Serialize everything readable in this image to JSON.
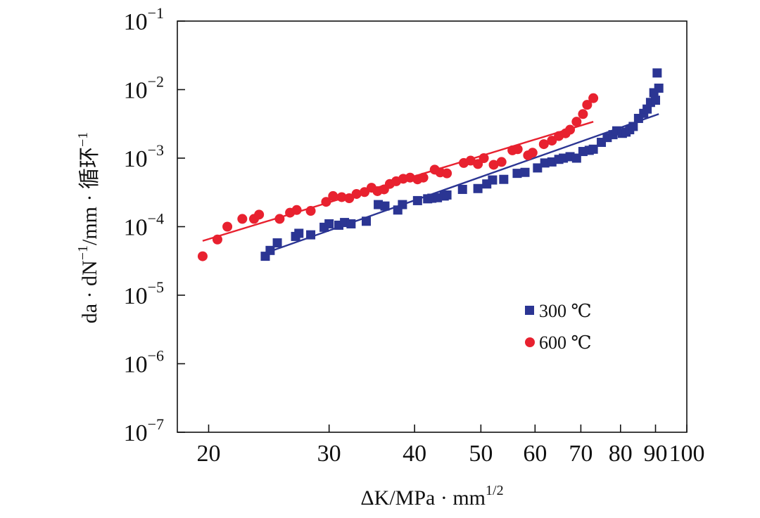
{
  "chart_data": {
    "type": "scatter",
    "x_scale": "log",
    "y_scale": "log",
    "xlabel": {
      "main": "ΔK/MPa · mm",
      "sup": "1/2"
    },
    "ylabel": {
      "a": "da · dN",
      "sup1": "−1",
      "b": "/mm · 循环",
      "sup2": "−1"
    },
    "xlim": [
      18,
      100
    ],
    "ylim": [
      1e-07,
      0.1
    ],
    "x_ticks": [
      {
        "value": 20,
        "label": "20"
      },
      {
        "value": 30,
        "label": "30"
      },
      {
        "value": 40,
        "label": "40"
      },
      {
        "value": 50,
        "label": "50"
      },
      {
        "value": 60,
        "label": "60"
      },
      {
        "value": 70,
        "label": "70"
      },
      {
        "value": 80,
        "label": "80"
      },
      {
        "value": 90,
        "label": "90"
      },
      {
        "value": 100,
        "label": "100"
      }
    ],
    "y_ticks": [
      {
        "value": 1e-07,
        "base": "10",
        "exp": "−7"
      },
      {
        "value": 1e-06,
        "base": "10",
        "exp": "−6"
      },
      {
        "value": 1e-05,
        "base": "10",
        "exp": "−5"
      },
      {
        "value": 0.0001,
        "base": "10",
        "exp": "−4"
      },
      {
        "value": 0.001,
        "base": "10",
        "exp": "−3"
      },
      {
        "value": 0.01,
        "base": "10",
        "exp": "−2"
      },
      {
        "value": 0.1,
        "base": "10",
        "exp": "−1"
      }
    ],
    "legend_position": "center-right",
    "series": [
      {
        "name": "300 ℃",
        "marker": "square",
        "color": "#2b3593",
        "points": [
          [
            24.2,
            3.7e-05
          ],
          [
            24.6,
            4.5e-05
          ],
          [
            25.2,
            5.8e-05
          ],
          [
            26.8,
            7.2e-05
          ],
          [
            27.1,
            8e-05
          ],
          [
            28.2,
            7.6e-05
          ],
          [
            29.5,
            9.8e-05
          ],
          [
            30.0,
            0.00011
          ],
          [
            31.0,
            0.000105
          ],
          [
            31.6,
            0.000115
          ],
          [
            32.3,
            0.00011
          ],
          [
            34.0,
            0.00012
          ],
          [
            35.4,
            0.00021
          ],
          [
            36.2,
            0.0002
          ],
          [
            37.8,
            0.000175
          ],
          [
            38.4,
            0.00021
          ],
          [
            40.4,
            0.00024
          ],
          [
            41.8,
            0.000255
          ],
          [
            42.4,
            0.00026
          ],
          [
            43.2,
            0.000265
          ],
          [
            44.2,
            0.00028
          ],
          [
            44.6,
            0.00029
          ],
          [
            47.0,
            0.00035
          ],
          [
            49.5,
            0.00036
          ],
          [
            51.0,
            0.00042
          ],
          [
            52.0,
            0.00048
          ],
          [
            54.0,
            0.00049
          ],
          [
            56.5,
            0.0006
          ],
          [
            58.0,
            0.00062
          ],
          [
            60.5,
            0.00072
          ],
          [
            62.0,
            0.00085
          ],
          [
            63.5,
            0.00088
          ],
          [
            65.0,
            0.00096
          ],
          [
            66.0,
            0.001
          ],
          [
            67.5,
            0.00105
          ],
          [
            69.0,
            0.001
          ],
          [
            70.5,
            0.00125
          ],
          [
            72.0,
            0.0013
          ],
          [
            73.0,
            0.00135
          ],
          [
            75.0,
            0.0017
          ],
          [
            76.5,
            0.002
          ],
          [
            78.0,
            0.0022
          ],
          [
            79.0,
            0.0025
          ],
          [
            80.5,
            0.0023
          ],
          [
            81.5,
            0.0024
          ],
          [
            82.5,
            0.0026
          ],
          [
            83.5,
            0.0029
          ],
          [
            85.0,
            0.0038
          ],
          [
            86.5,
            0.0045
          ],
          [
            87.5,
            0.0052
          ],
          [
            88.5,
            0.0065
          ],
          [
            89.5,
            0.009
          ],
          [
            90.0,
            0.007
          ],
          [
            91.0,
            0.0105
          ],
          [
            90.5,
            0.0175
          ]
        ],
        "fit": [
          [
            24.0,
            4e-05
          ],
          [
            91.0,
            0.0044
          ]
        ]
      },
      {
        "name": "600 ℃",
        "marker": "circle",
        "color": "#e8212f",
        "points": [
          [
            19.6,
            3.7e-05
          ],
          [
            20.6,
            6.5e-05
          ],
          [
            21.3,
            0.0001
          ],
          [
            22.4,
            0.00013
          ],
          [
            23.3,
            0.00013
          ],
          [
            23.7,
            0.00015
          ],
          [
            25.4,
            0.00013
          ],
          [
            26.3,
            0.00016
          ],
          [
            26.9,
            0.000175
          ],
          [
            28.2,
            0.00017
          ],
          [
            29.7,
            0.00023
          ],
          [
            30.4,
            0.00028
          ],
          [
            31.3,
            0.00027
          ],
          [
            32.1,
            0.00026
          ],
          [
            32.9,
            0.0003
          ],
          [
            33.8,
            0.00032
          ],
          [
            34.6,
            0.00037
          ],
          [
            35.3,
            0.00033
          ],
          [
            36.1,
            0.00035
          ],
          [
            36.8,
            0.00042
          ],
          [
            37.6,
            0.00046
          ],
          [
            38.5,
            0.0005
          ],
          [
            39.4,
            0.00052
          ],
          [
            40.4,
            0.00049
          ],
          [
            41.2,
            0.00052
          ],
          [
            42.8,
            0.00068
          ],
          [
            43.6,
            0.00062
          ],
          [
            44.6,
            0.0006
          ],
          [
            47.2,
            0.00085
          ],
          [
            48.3,
            0.00092
          ],
          [
            49.5,
            0.00082
          ],
          [
            50.5,
            0.001
          ],
          [
            52.2,
            0.0008
          ],
          [
            53.6,
            0.00088
          ],
          [
            55.6,
            0.0013
          ],
          [
            56.6,
            0.00135
          ],
          [
            58.6,
            0.0011
          ],
          [
            59.5,
            0.0012
          ],
          [
            61.8,
            0.0016
          ],
          [
            63.5,
            0.0018
          ],
          [
            65.0,
            0.0021
          ],
          [
            66.5,
            0.0023
          ],
          [
            67.5,
            0.0026
          ],
          [
            69.0,
            0.0034
          ],
          [
            70.5,
            0.0044
          ],
          [
            71.5,
            0.006
          ],
          [
            73.0,
            0.0075
          ]
        ],
        "fit": [
          [
            19.6,
            6.2e-05
          ],
          [
            73.0,
            0.0034
          ]
        ]
      }
    ]
  }
}
